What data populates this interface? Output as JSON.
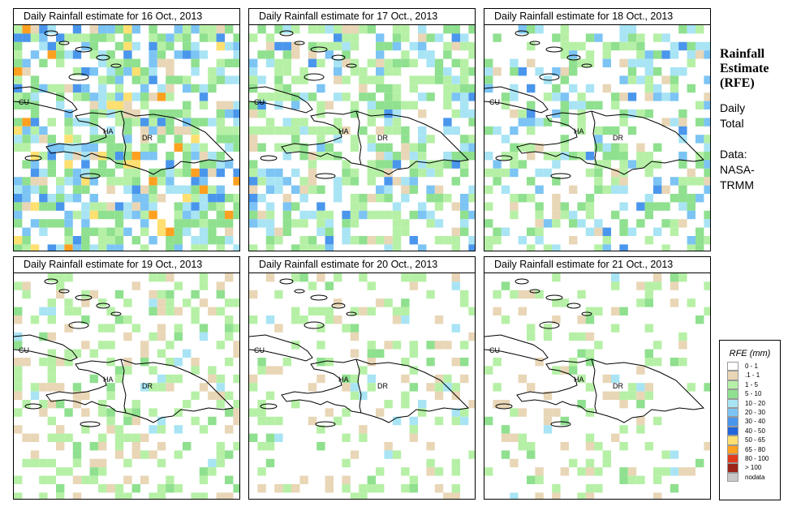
{
  "legend": {
    "title": "RFE (mm)",
    "classes": [
      {
        "label": "0 - 1",
        "color": "#ffffff"
      },
      {
        "label": ".1 - 1",
        "color": "#e8d6b6"
      },
      {
        "label": "1 - 5",
        "color": "#b6f0a6"
      },
      {
        "label": "5 - 10",
        "color": "#8fe08f"
      },
      {
        "label": "10 - 20",
        "color": "#a8e4f4"
      },
      {
        "label": "20 - 30",
        "color": "#7cc4f4"
      },
      {
        "label": "30 - 40",
        "color": "#4a96ec"
      },
      {
        "label": "40 - 50",
        "color": "#2266dc"
      },
      {
        "label": "50 - 65",
        "color": "#ffe070"
      },
      {
        "label": "65 - 80",
        "color": "#ffa020"
      },
      {
        "label": "80 - 100",
        "color": "#e43a1c"
      },
      {
        "label": "> 100",
        "color": "#9c2418"
      },
      {
        "label": "nodata",
        "color": "#c8c8c8"
      }
    ]
  },
  "side": {
    "title_lines": [
      "Rainfall",
      "Estimate",
      "(RFE)"
    ],
    "text_lines": [
      "Daily",
      "Total",
      "",
      "Data:",
      "NASA-",
      "TRMM"
    ]
  },
  "map_labels": {
    "cu": "CU",
    "ha": "HA",
    "dr": "DR"
  },
  "panels": [
    {
      "title": "Daily Rainfall estimate for  16 Oct., 2013",
      "seed": 16,
      "level": 5
    },
    {
      "title": "Daily Rainfall estimate for  17 Oct., 2013",
      "seed": 17,
      "level": 4
    },
    {
      "title": "Daily Rainfall estimate for  18 Oct., 2013",
      "seed": 18,
      "level": 3
    },
    {
      "title": "Daily Rainfall estimate for  19 Oct., 2013",
      "seed": 19,
      "level": 2
    },
    {
      "title": "Daily Rainfall estimate for  20 Oct., 2013",
      "seed": 20,
      "level": 1
    },
    {
      "title": "Daily Rainfall estimate for  21 Oct., 2013",
      "seed": 21,
      "level": 1
    }
  ]
}
